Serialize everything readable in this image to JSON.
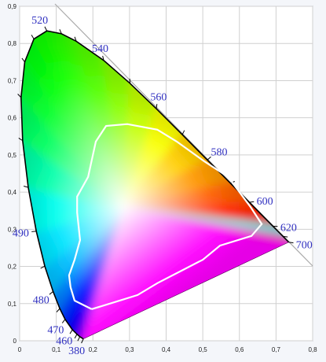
{
  "chart_data": {
    "type": "chromaticity",
    "xlim": [
      0,
      0.8
    ],
    "ylim": [
      0,
      0.9
    ],
    "xticks": [
      0,
      {
        "value": 0.1,
        "label": "0,1"
      },
      {
        "value": 0.2,
        "label": "0,2"
      },
      {
        "value": 0.3,
        "label": "0,3"
      },
      {
        "value": 0.4,
        "label": "0,4"
      },
      {
        "value": 0.5,
        "label": "0,5"
      },
      {
        "value": 0.6,
        "label": "0,6"
      },
      {
        "value": 0.7,
        "label": "0,7"
      },
      {
        "value": 0.8,
        "label": "0,8"
      }
    ],
    "yticks": [
      0,
      {
        "value": 0.1,
        "label": "0,1"
      },
      {
        "value": 0.2,
        "label": "0,2"
      },
      {
        "value": 0.3,
        "label": "0,3"
      },
      {
        "value": 0.4,
        "label": "0,4"
      },
      {
        "value": 0.5,
        "label": "0,5"
      },
      {
        "value": 0.6,
        "label": "0,6"
      },
      {
        "value": 0.7,
        "label": "0,7"
      },
      {
        "value": 0.8,
        "label": "0,8"
      },
      {
        "value": 0.9,
        "label": "0,9"
      }
    ],
    "grid": true,
    "series": [
      {
        "name": "spectral locus",
        "color": "#000000",
        "x": [
          0.1741,
          0.1644,
          0.1566,
          0.144,
          0.1241,
          0.1096,
          0.0913,
          0.0687,
          0.0454,
          0.0235,
          0.0082,
          0.0039,
          0.0139,
          0.0389,
          0.0743,
          0.1142,
          0.1547,
          0.2296,
          0.3016,
          0.3731,
          0.4441,
          0.5125,
          0.5752,
          0.627,
          0.6915,
          0.719,
          0.7347
        ],
        "values": [
          0.005,
          0.0109,
          0.0177,
          0.0297,
          0.0578,
          0.0868,
          0.1327,
          0.2007,
          0.295,
          0.4127,
          0.5384,
          0.6548,
          0.7502,
          0.812,
          0.8338,
          0.8262,
          0.8059,
          0.7543,
          0.6923,
          0.6245,
          0.5547,
          0.4866,
          0.4242,
          0.3725,
          0.3083,
          0.2809,
          0.2653
        ],
        "labels": [
          "380",
          null,
          null,
          "460",
          "470",
          null,
          "480",
          null,
          "490",
          null,
          null,
          null,
          null,
          null,
          "520",
          null,
          null,
          "540",
          null,
          "560",
          null,
          "580",
          null,
          "600",
          "620",
          null,
          "700"
        ]
      },
      {
        "name": "gamut",
        "color": "#ffffff",
        "x": [
          0.197,
          0.15,
          0.139,
          0.135,
          0.15,
          0.165,
          0.157,
          0.157,
          0.187,
          0.208,
          0.236,
          0.294,
          0.376,
          0.429,
          0.504,
          0.569,
          0.629,
          0.661,
          0.633,
          0.547,
          0.5,
          0.376,
          0.322,
          0.197
        ],
        "values": [
          0.085,
          0.108,
          0.144,
          0.176,
          0.218,
          0.271,
          0.345,
          0.388,
          0.441,
          0.536,
          0.578,
          0.583,
          0.568,
          0.536,
          0.483,
          0.441,
          0.362,
          0.314,
          0.282,
          0.256,
          0.218,
          0.155,
          0.123,
          0.085
        ]
      }
    ]
  }
}
